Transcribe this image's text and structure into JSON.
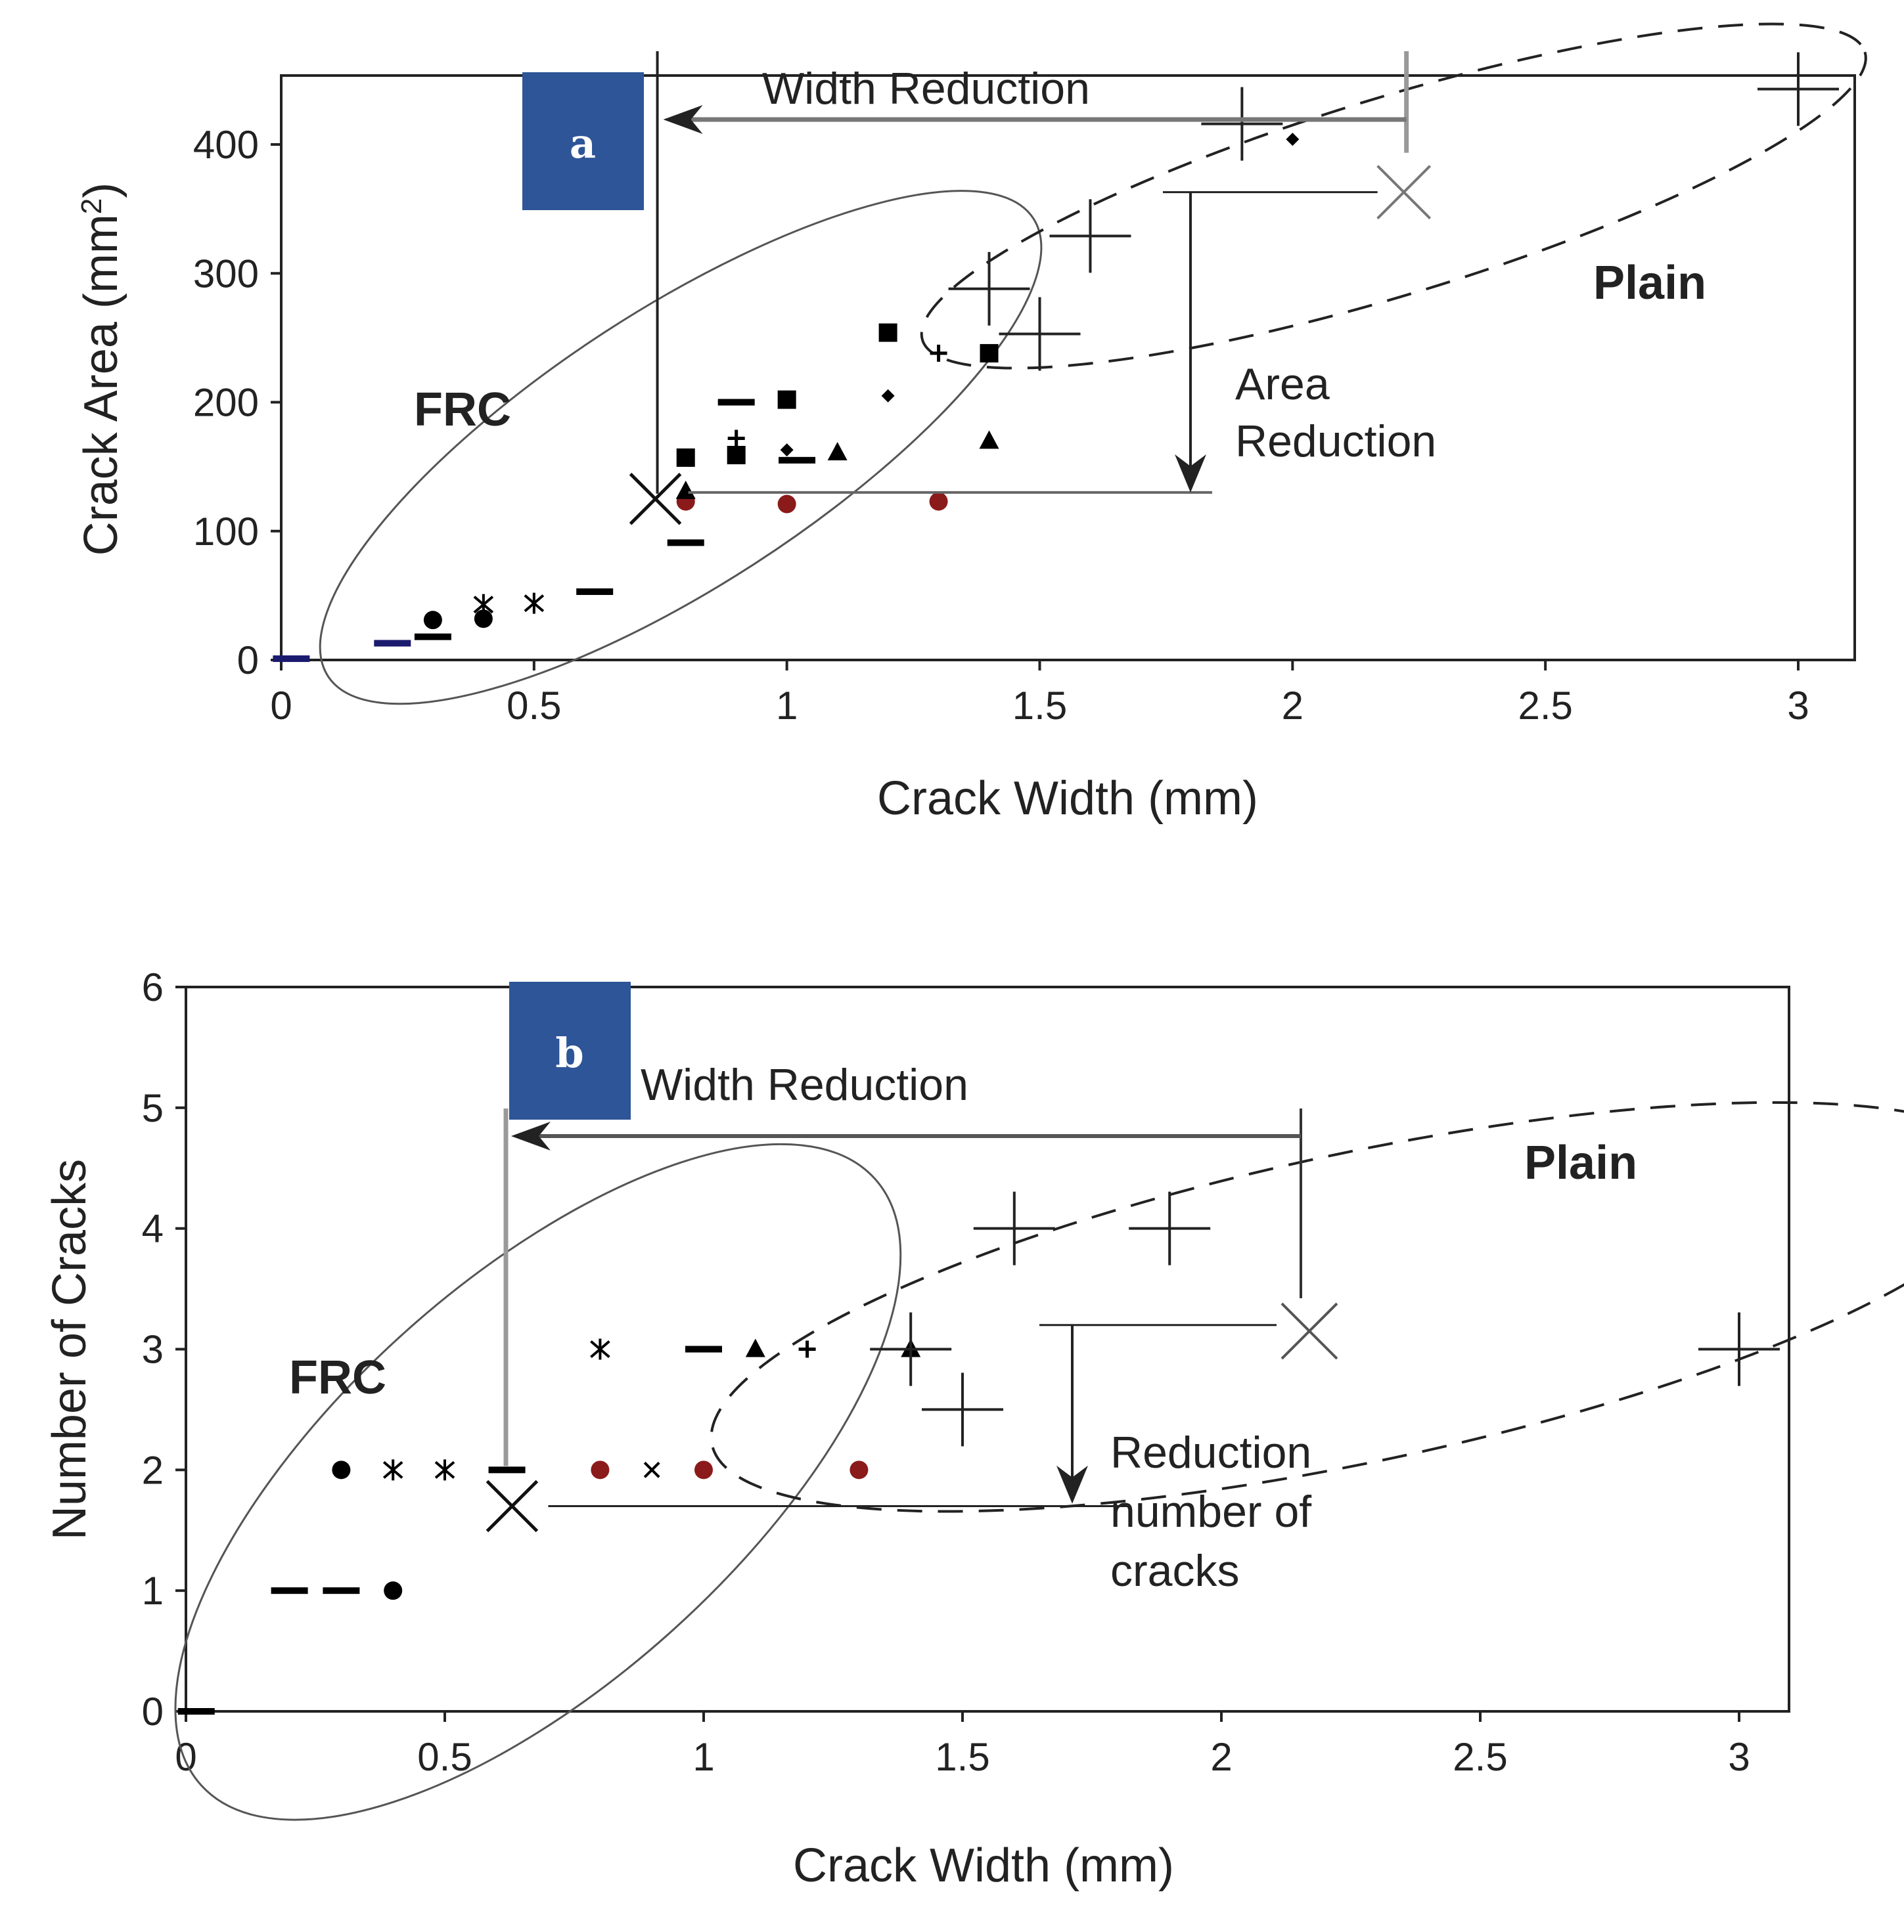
{
  "chart_data": [
    {
      "panel": "a",
      "type": "scatter",
      "xlabel": "Crack Width (mm)",
      "ylabel": "Crack Area (mm",
      "ylabel_sup": "2",
      "ylabel_tail": ")",
      "xlim": [
        0,
        3.1
      ],
      "ylim": [
        0,
        450
      ],
      "xticks": [
        0,
        0.5,
        1,
        1.5,
        2,
        2.5,
        3
      ],
      "xtick_labels": [
        "0",
        "0.5",
        "1",
        "1.5",
        "2",
        "2.5",
        "3"
      ],
      "yticks": [
        0,
        100,
        200,
        300,
        400
      ],
      "ytick_labels": [
        "0",
        "100",
        "200",
        "300",
        "400"
      ],
      "groups": {
        "frc": "FRC",
        "plain": "Plain"
      },
      "annotations": {
        "width_reduction": "Width Reduction",
        "area_reduction_1": "Area",
        "area_reduction_2": "Reduction"
      },
      "frc_points": [
        {
          "x": 0.02,
          "y": 1,
          "marker": "dash",
          "color": "#1a1a6e"
        },
        {
          "x": 0.22,
          "y": 13,
          "marker": "dash",
          "color": "#1a1a6e"
        },
        {
          "x": 0.3,
          "y": 18,
          "marker": "dash",
          "color": "#000000"
        },
        {
          "x": 0.3,
          "y": 31,
          "marker": "circle",
          "color": "#000000"
        },
        {
          "x": 0.4,
          "y": 32,
          "marker": "circle",
          "color": "#000000"
        },
        {
          "x": 0.4,
          "y": 43,
          "marker": "asterisk",
          "color": "#000000"
        },
        {
          "x": 0.5,
          "y": 44,
          "marker": "asterisk",
          "color": "#000000"
        },
        {
          "x": 0.62,
          "y": 53,
          "marker": "dash",
          "color": "#000000"
        },
        {
          "x": 0.8,
          "y": 91,
          "marker": "dash",
          "color": "#000000"
        },
        {
          "x": 0.8,
          "y": 123,
          "marker": "circle",
          "color": "#8b1a1a"
        },
        {
          "x": 0.8,
          "y": 131,
          "marker": "triangle",
          "color": "#000000"
        },
        {
          "x": 0.8,
          "y": 157,
          "marker": "square",
          "color": "#000000"
        },
        {
          "x": 0.9,
          "y": 159,
          "marker": "square",
          "color": "#000000"
        },
        {
          "x": 0.9,
          "y": 172,
          "marker": "plus",
          "color": "#000000"
        },
        {
          "x": 0.9,
          "y": 200,
          "marker": "dash",
          "color": "#000000"
        },
        {
          "x": 1.0,
          "y": 121,
          "marker": "circle",
          "color": "#8b1a1a"
        },
        {
          "x": 1.0,
          "y": 163,
          "marker": "diamond",
          "color": "#000000"
        },
        {
          "x": 1.0,
          "y": 202,
          "marker": "square",
          "color": "#000000"
        },
        {
          "x": 1.02,
          "y": 155,
          "marker": "dash",
          "color": "#000000"
        },
        {
          "x": 1.1,
          "y": 161,
          "marker": "triangle",
          "color": "#000000"
        },
        {
          "x": 1.2,
          "y": 205,
          "marker": "diamond",
          "color": "#000000"
        },
        {
          "x": 1.2,
          "y": 254,
          "marker": "square",
          "color": "#000000"
        },
        {
          "x": 1.3,
          "y": 123,
          "marker": "circle",
          "color": "#8b1a1a"
        },
        {
          "x": 1.3,
          "y": 238,
          "marker": "plus",
          "color": "#000000"
        },
        {
          "x": 1.4,
          "y": 170,
          "marker": "triangle",
          "color": "#000000"
        },
        {
          "x": 1.4,
          "y": 238,
          "marker": "square",
          "color": "#000000"
        }
      ],
      "plain_points": [
        {
          "x": 1.4,
          "y": 288,
          "marker": "bigplus"
        },
        {
          "x": 1.5,
          "y": 253,
          "marker": "bigplus"
        },
        {
          "x": 1.6,
          "y": 329,
          "marker": "bigplus"
        },
        {
          "x": 1.9,
          "y": 416,
          "marker": "bigplus"
        },
        {
          "x": 2.0,
          "y": 404,
          "marker": "diamond"
        },
        {
          "x": 3.0,
          "y": 443,
          "marker": "bigplus"
        }
      ],
      "means": {
        "frc": {
          "x": 0.74,
          "y": 125
        },
        "plain": {
          "x": 2.22,
          "y": 363
        }
      }
    },
    {
      "panel": "b",
      "type": "scatter",
      "xlabel": "Crack Width (mm)",
      "ylabel": "Number of Cracks",
      "xlim": [
        0,
        3.1
      ],
      "ylim": [
        0,
        6
      ],
      "xticks": [
        0,
        0.5,
        1,
        1.5,
        2,
        2.5,
        3
      ],
      "xtick_labels": [
        "0",
        "0.5",
        "1",
        "1.5",
        "2",
        "2.5",
        "3"
      ],
      "yticks": [
        0,
        1,
        2,
        3,
        4,
        5,
        6
      ],
      "ytick_labels": [
        "0",
        "1",
        "2",
        "3",
        "4",
        "5",
        "6"
      ],
      "groups": {
        "frc": "FRC",
        "plain": "Plain"
      },
      "annotations": {
        "width_reduction": "Width Reduction",
        "reduction_1": "Reduction",
        "reduction_2": "number of",
        "reduction_3": "cracks"
      },
      "frc_points": [
        {
          "x": 0.02,
          "y": 0,
          "marker": "dash",
          "color": "#000000"
        },
        {
          "x": 0.2,
          "y": 1,
          "marker": "dash",
          "color": "#000000"
        },
        {
          "x": 0.3,
          "y": 1,
          "marker": "dash",
          "color": "#000000"
        },
        {
          "x": 0.4,
          "y": 1,
          "marker": "circle",
          "color": "#000000"
        },
        {
          "x": 0.3,
          "y": 2,
          "marker": "circle",
          "color": "#000000"
        },
        {
          "x": 0.4,
          "y": 2,
          "marker": "asterisk",
          "color": "#000000"
        },
        {
          "x": 0.5,
          "y": 2,
          "marker": "asterisk",
          "color": "#000000"
        },
        {
          "x": 0.62,
          "y": 2,
          "marker": "dash",
          "color": "#000000"
        },
        {
          "x": 0.8,
          "y": 2,
          "marker": "circle",
          "color": "#8b1a1a"
        },
        {
          "x": 0.9,
          "y": 2,
          "marker": "x",
          "color": "#000000"
        },
        {
          "x": 1.0,
          "y": 2,
          "marker": "circle",
          "color": "#8b1a1a"
        },
        {
          "x": 1.3,
          "y": 2,
          "marker": "circle",
          "color": "#8b1a1a"
        },
        {
          "x": 0.8,
          "y": 3,
          "marker": "asterisk",
          "color": "#000000"
        },
        {
          "x": 1.0,
          "y": 3,
          "marker": "dash",
          "color": "#000000"
        },
        {
          "x": 1.1,
          "y": 3,
          "marker": "triangle",
          "color": "#000000"
        },
        {
          "x": 1.2,
          "y": 3,
          "marker": "plus",
          "color": "#000000"
        },
        {
          "x": 1.4,
          "y": 3,
          "marker": "triangle",
          "color": "#000000"
        }
      ],
      "plain_points": [
        {
          "x": 1.4,
          "y": 3,
          "marker": "bigplus"
        },
        {
          "x": 1.5,
          "y": 2.5,
          "marker": "bigplus"
        },
        {
          "x": 1.6,
          "y": 4,
          "marker": "bigplus"
        },
        {
          "x": 1.9,
          "y": 4,
          "marker": "bigplus"
        },
        {
          "x": 3.0,
          "y": 3,
          "marker": "bigplus"
        }
      ],
      "means": {
        "frc": {
          "x": 0.63,
          "y": 1.7
        },
        "plain": {
          "x": 2.17,
          "y": 3.15
        }
      }
    }
  ]
}
